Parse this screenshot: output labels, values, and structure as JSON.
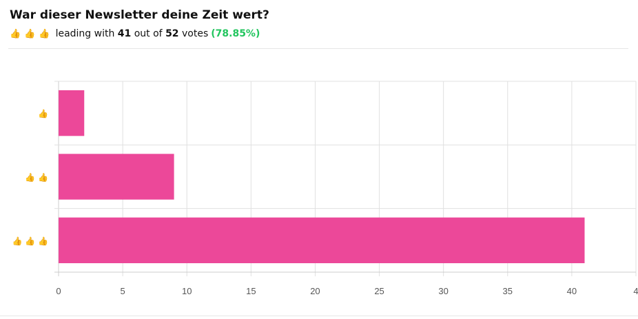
{
  "header": {
    "title": "War dieser Newsletter deine Zeit wert?",
    "winner_icons": [
      "thumbs-up-icon",
      "thumbs-up-icon",
      "thumbs-up-icon"
    ],
    "leading_text": "leading with",
    "leading_count": "41",
    "out_of_text": "out of",
    "total_votes": "52",
    "votes_text": "votes",
    "percentage": "(78.85%)"
  },
  "colors": {
    "bar": "#ec4899",
    "percentage": "#22c55e",
    "grid": "#e0e0e0",
    "axis": "#cccccc",
    "thumb": "#f0a030"
  },
  "chart_data": {
    "type": "bar",
    "orientation": "horizontal",
    "categories": [
      "👍",
      "👍👍",
      "👍👍👍"
    ],
    "category_icons": [
      [
        "thumbs-up-icon"
      ],
      [
        "thumbs-up-icon",
        "thumbs-up-icon"
      ],
      [
        "thumbs-up-icon",
        "thumbs-up-icon",
        "thumbs-up-icon"
      ]
    ],
    "values": [
      2,
      9,
      41
    ],
    "xlim": [
      0,
      45
    ],
    "x_ticks": [
      "0",
      "5",
      "10",
      "15",
      "20",
      "25",
      "30",
      "35",
      "40",
      "4"
    ],
    "grid": true,
    "title": "",
    "xlabel": "",
    "ylabel": ""
  }
}
